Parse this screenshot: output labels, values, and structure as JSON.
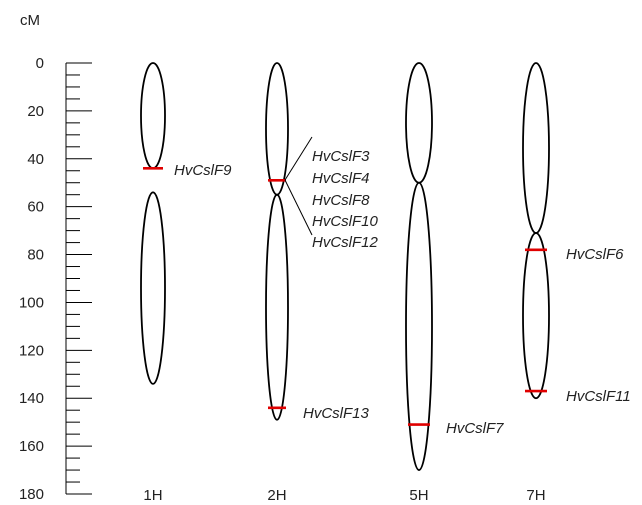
{
  "unit_label": "cM",
  "scale": {
    "min": 0,
    "max": 180,
    "major_step": 20,
    "minor_step": 5,
    "tick_labels": [
      "0",
      "20",
      "40",
      "60",
      "80",
      "100",
      "120",
      "140",
      "160",
      "180"
    ]
  },
  "colors": {
    "outline": "#000000",
    "marker": "#e00000",
    "text": "#222222"
  },
  "chromosomes": [
    {
      "id": "1H",
      "label": "1H",
      "arms": [
        [
          0,
          44
        ],
        [
          54,
          134
        ]
      ],
      "markers": [
        {
          "gene": "HvCslF9",
          "pos": 44
        }
      ]
    },
    {
      "id": "2H",
      "label": "2H",
      "arms": [
        [
          0,
          55
        ],
        [
          55,
          149
        ]
      ],
      "markers": [
        {
          "gene": "HvCslF3 / HvCslF4 / HvCslF8 / HvCslF10 / HvCslF12",
          "pos": 49
        },
        {
          "gene": "HvCslF13",
          "pos": 144
        }
      ]
    },
    {
      "id": "5H",
      "label": "5H",
      "arms": [
        [
          0,
          50
        ],
        [
          50,
          170
        ]
      ],
      "markers": [
        {
          "gene": "HvCslF7",
          "pos": 151
        }
      ]
    },
    {
      "id": "7H",
      "label": "7H",
      "arms": [
        [
          0,
          71
        ],
        [
          71,
          140
        ]
      ],
      "markers": [
        {
          "gene": "HvCslF6",
          "pos": 78
        },
        {
          "gene": "HvCslF11",
          "pos": 137
        }
      ]
    }
  ],
  "gene_labels": {
    "g1h": "HvCslF9",
    "g2h_cluster": [
      "HvCslF3",
      "HvCslF4",
      "HvCslF8",
      "HvCslF10",
      "HvCslF12"
    ],
    "g2h_low": "HvCslF13",
    "g5h": "HvCslF7",
    "g7h_a": "HvCslF6",
    "g7h_b": "HvCslF11"
  }
}
